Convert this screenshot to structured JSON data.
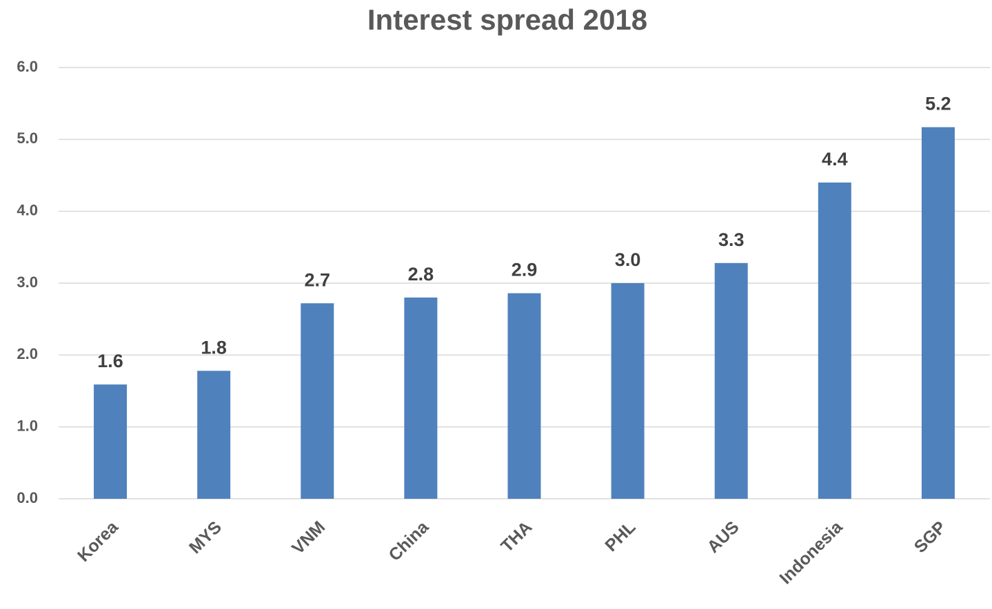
{
  "chart_data": {
    "type": "bar",
    "title": "Interest spread 2018",
    "categories": [
      "Korea",
      "MYS",
      "VNM",
      "China",
      "THA",
      "PHL",
      "AUS",
      "Indonesia",
      "SGP"
    ],
    "values": [
      1.59,
      1.78,
      2.72,
      2.8,
      2.86,
      3.0,
      3.28,
      4.4,
      5.17
    ],
    "value_labels": [
      "1.6",
      "1.8",
      "2.7",
      "2.8",
      "2.9",
      "3.0",
      "3.3",
      "4.4",
      "5.2"
    ],
    "color": "#4f81bd",
    "ylim": [
      0,
      6
    ],
    "yticks": [
      {
        "value": 0,
        "label": "0.0"
      },
      {
        "value": 1,
        "label": "1.0"
      },
      {
        "value": 2,
        "label": "2.0"
      },
      {
        "value": 3,
        "label": "3.0"
      },
      {
        "value": 4,
        "label": "4.0"
      },
      {
        "value": 5,
        "label": "5.0"
      },
      {
        "value": 6,
        "label": "6.0"
      }
    ],
    "grid": true
  }
}
